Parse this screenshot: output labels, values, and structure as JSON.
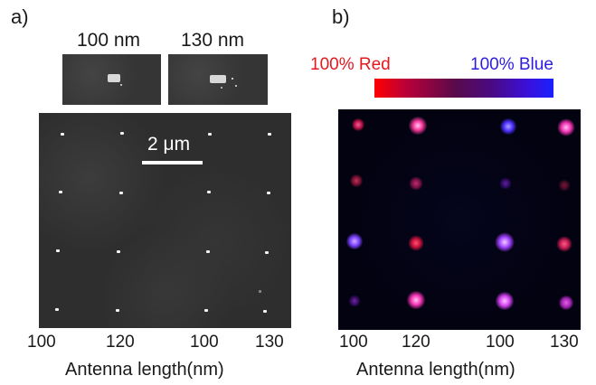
{
  "panel_a": {
    "label": "a)",
    "inset_left_label": "100 nm",
    "inset_right_label": "130 nm",
    "scale_bar_label": "2 μm",
    "tick_labels": [
      "100",
      "120",
      "100",
      "130"
    ],
    "axis_title": "Antenna length(nm)"
  },
  "panel_b": {
    "label": "b)",
    "legend_red": "100% Red",
    "legend_blue": "100% Blue",
    "tick_labels": [
      "100",
      "120",
      "100",
      "130"
    ],
    "axis_title": "Antenna length(nm)",
    "colors": {
      "red": "#ff0000",
      "blue": "#1a20ff",
      "purple": "#c020ff",
      "magenta": "#ff2a8c"
    }
  }
}
